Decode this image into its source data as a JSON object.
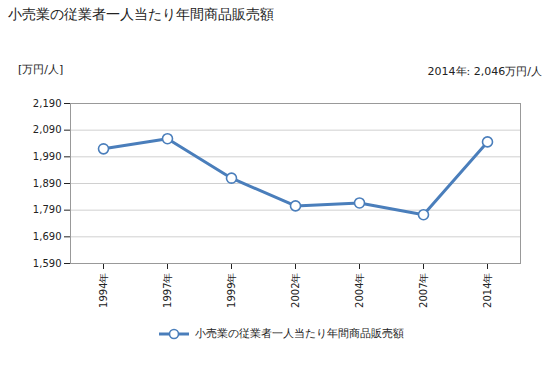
{
  "chart_data": {
    "type": "line",
    "title": "小売業の従業者一人当たり年間商品販売額",
    "subtitle": "[万円/人]",
    "annotation": "2014年: 2,046万円/人",
    "categories": [
      "1994年",
      "1997年",
      "1999年",
      "2002年",
      "2004年",
      "2007年",
      "2014年"
    ],
    "series": [
      {
        "name": "小売業の従業者一人当たり年間商品販売額",
        "color": "#4a7ebb",
        "marker": "circle",
        "line_style": "solid",
        "values": [
          2020,
          2058,
          1910,
          1806,
          1817,
          1773,
          2046
        ]
      }
    ],
    "ylim": [
      1590,
      2190
    ],
    "yticks": [
      {
        "value": 1590,
        "label": "1,590"
      },
      {
        "value": 1690,
        "label": "1,690"
      },
      {
        "value": 1790,
        "label": "1,790"
      },
      {
        "value": 1890,
        "label": "1,890"
      },
      {
        "value": 1990,
        "label": "1,990"
      },
      {
        "value": 2090,
        "label": "2,090"
      },
      {
        "value": 2190,
        "label": "2,190"
      }
    ],
    "grid": true,
    "legend": "bottom"
  }
}
